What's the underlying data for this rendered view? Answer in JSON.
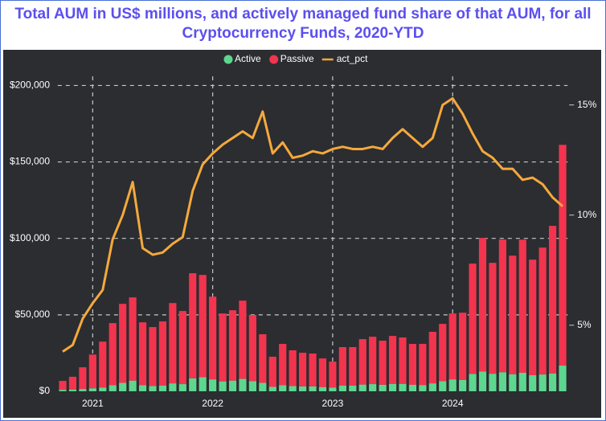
{
  "chart_data": {
    "type": "bar",
    "stacked": true,
    "title": "Total AUM in US$ millions, and actively managed fund share of that AUM, for all Cryptocurrency Funds, 2020-YTD",
    "categories": [
      null,
      null,
      null,
      "2021",
      null,
      null,
      null,
      null,
      null,
      null,
      null,
      null,
      null,
      null,
      null,
      "2022",
      null,
      null,
      null,
      null,
      null,
      null,
      null,
      null,
      null,
      null,
      null,
      "2023",
      null,
      null,
      null,
      null,
      null,
      null,
      null,
      null,
      null,
      null,
      null,
      "2024",
      null,
      null,
      null,
      null,
      null,
      null,
      null,
      null,
      null,
      null,
      null
    ],
    "series": [
      {
        "name": "Active",
        "color": "#5ed68f",
        "values": [
          1000,
          1200,
          1500,
          2000,
          2500,
          4000,
          5500,
          7000,
          4000,
          3500,
          3800,
          5200,
          4700,
          8500,
          9300,
          7800,
          6500,
          7000,
          8100,
          6700,
          5500,
          2900,
          4000,
          3400,
          3200,
          3200,
          2800,
          2500,
          3800,
          3700,
          4400,
          4700,
          4300,
          4900,
          4900,
          4200,
          4100,
          5200,
          6600,
          7800,
          7500,
          11400,
          12900,
          11500,
          12500,
          11200,
          12100,
          10500,
          11000,
          11700,
          16800
        ]
      },
      {
        "name": "Passive",
        "color": "#f2344f",
        "values": [
          5800,
          8300,
          14200,
          22000,
          30000,
          40600,
          51700,
          54400,
          41100,
          38500,
          41900,
          52500,
          47800,
          68700,
          66800,
          54100,
          44400,
          46000,
          51200,
          43200,
          31800,
          19700,
          27000,
          23400,
          22000,
          21500,
          18700,
          16900,
          25100,
          25200,
          29700,
          31000,
          28800,
          31300,
          30300,
          26800,
          26900,
          33700,
          37500,
          43100,
          43900,
          72100,
          87400,
          72500,
          86700,
          77500,
          87100,
          75600,
          83000,
          96500,
          144400
        ]
      },
      {
        "name": "act_pct",
        "type": "line",
        "axis": "y2",
        "color": "#f5a93b",
        "values": [
          3.8,
          4.1,
          5.3,
          6.0,
          6.6,
          8.9,
          10.0,
          11.5,
          8.5,
          8.2,
          8.3,
          8.7,
          9.0,
          11.1,
          12.3,
          12.8,
          13.2,
          13.5,
          13.8,
          13.5,
          14.7,
          12.8,
          13.3,
          12.6,
          12.7,
          12.9,
          12.8,
          13.0,
          13.1,
          13.0,
          13.0,
          13.1,
          13.0,
          13.5,
          13.9,
          13.5,
          13.1,
          13.5,
          15.0,
          15.3,
          14.6,
          13.7,
          12.9,
          12.6,
          12.1,
          12.1,
          11.6,
          11.7,
          11.4,
          10.8,
          10.4
        ]
      }
    ],
    "ylim": [
      0,
      206000
    ],
    "yticks": [
      {
        "value": 0,
        "label": "$0"
      },
      {
        "value": 50000,
        "label": "$50,000"
      },
      {
        "value": 100000,
        "label": "$100,000"
      },
      {
        "value": 150000,
        "label": "$150,000"
      },
      {
        "value": 200000,
        "label": "$200,000"
      }
    ],
    "y2lim": [
      2.0,
      16.3
    ],
    "y2ticks": [
      {
        "value": 5,
        "label": "5%"
      },
      {
        "value": 10,
        "label": "10%"
      },
      {
        "value": 15,
        "label": "15%"
      }
    ],
    "grid": true,
    "legend": "top"
  }
}
